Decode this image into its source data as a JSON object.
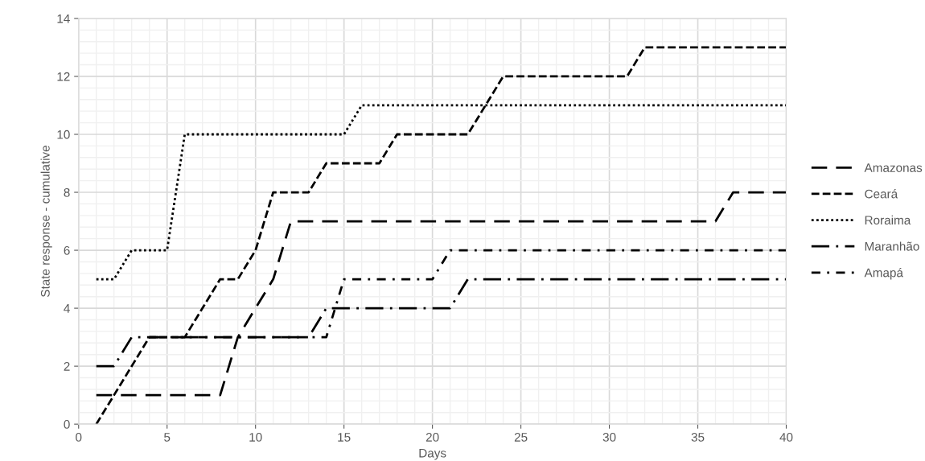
{
  "chart_data": {
    "type": "line",
    "xlabel": "Days",
    "ylabel": "State response - cumulative",
    "x": [
      1,
      2,
      3,
      4,
      5,
      6,
      7,
      8,
      9,
      10,
      11,
      12,
      13,
      14,
      15,
      16,
      17,
      18,
      19,
      20,
      21,
      22,
      23,
      24,
      25,
      26,
      27,
      28,
      29,
      30,
      31,
      32,
      33,
      34,
      35,
      36,
      37,
      38,
      39,
      40
    ],
    "series": [
      {
        "name": "Amazonas",
        "color": "#000000",
        "line_style": "longdash",
        "values": [
          1,
          1,
          1,
          1,
          1,
          1,
          1,
          1,
          3,
          4,
          5,
          7,
          7,
          7,
          7,
          7,
          7,
          7,
          7,
          7,
          7,
          7,
          7,
          7,
          7,
          7,
          7,
          7,
          7,
          7,
          7,
          7,
          7,
          7,
          7,
          7,
          8,
          8,
          8,
          8
        ]
      },
      {
        "name": "Ceará",
        "color": "#000000",
        "line_style": "dashed",
        "values": [
          0,
          1,
          2,
          3,
          3,
          3,
          4,
          5,
          5,
          6,
          8,
          8,
          8,
          9,
          9,
          9,
          9,
          10,
          10,
          10,
          10,
          10,
          11,
          12,
          12,
          12,
          12,
          12,
          12,
          12,
          12,
          13,
          13,
          13,
          13,
          13,
          13,
          13,
          13,
          13
        ]
      },
      {
        "name": "Roraima",
        "color": "#000000",
        "line_style": "dotted",
        "values": [
          5,
          5,
          6,
          6,
          6,
          10,
          10,
          10,
          10,
          10,
          10,
          10,
          10,
          10,
          10,
          11,
          11,
          11,
          11,
          11,
          11,
          11,
          11,
          11,
          11,
          11,
          11,
          11,
          11,
          11,
          11,
          11,
          11,
          11,
          11,
          11,
          11,
          11,
          11,
          11
        ]
      },
      {
        "name": "Maranhão",
        "color": "#000000",
        "line_style": "longdashdot",
        "values": [
          2,
          2,
          3,
          3,
          3,
          3,
          3,
          3,
          3,
          3,
          3,
          3,
          3,
          4,
          4,
          4,
          4,
          4,
          4,
          4,
          4,
          5,
          5,
          5,
          5,
          5,
          5,
          5,
          5,
          5,
          5,
          5,
          5,
          5,
          5,
          5,
          5,
          5,
          5,
          5
        ]
      },
      {
        "name": "Amapá",
        "color": "#000000",
        "line_style": "dashdot",
        "values": [
          null,
          null,
          null,
          3,
          3,
          3,
          3,
          3,
          3,
          3,
          3,
          3,
          3,
          3,
          5,
          5,
          5,
          5,
          5,
          5,
          6,
          6,
          6,
          6,
          6,
          6,
          6,
          6,
          6,
          6,
          6,
          6,
          6,
          6,
          6,
          6,
          6,
          6,
          6,
          6
        ]
      }
    ],
    "xlim": [
      0,
      40
    ],
    "xticks": [
      0,
      5,
      10,
      15,
      20,
      25,
      30,
      35,
      40
    ],
    "ylim": [
      0,
      14
    ],
    "yticks": [
      0,
      2,
      4,
      6,
      8,
      10,
      12,
      14
    ],
    "grid": true,
    "legend": "right"
  }
}
